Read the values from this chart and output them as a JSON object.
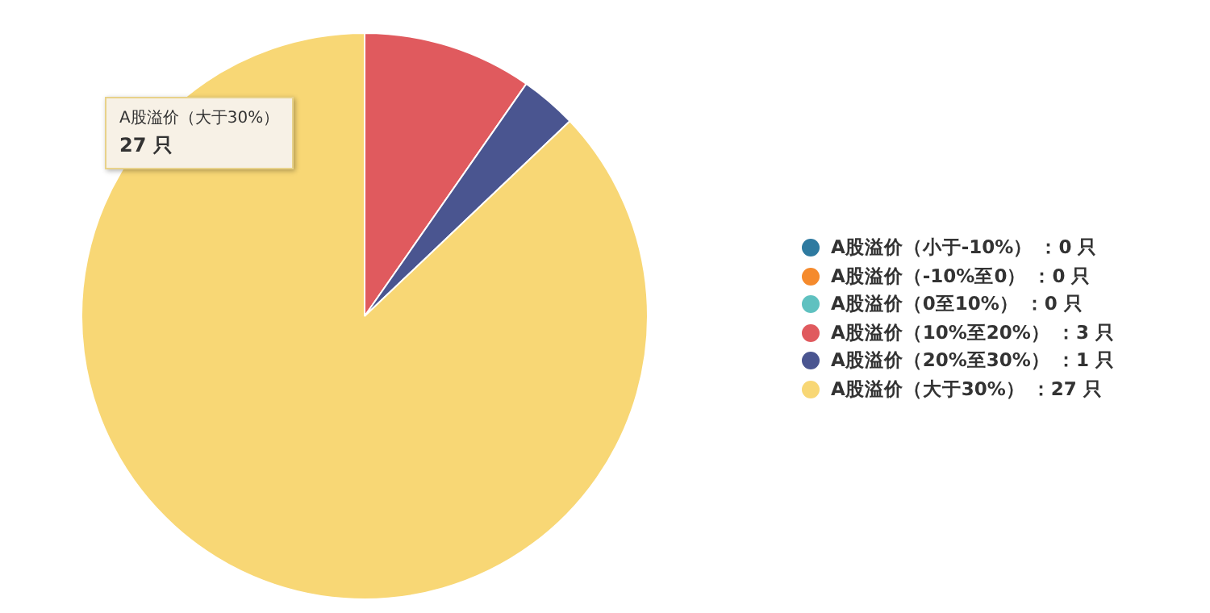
{
  "chart_data": {
    "type": "pie",
    "categories": [
      "A股溢价（小于-10%）",
      "A股溢价（-10%至0）",
      "A股溢价（0至10%）",
      "A股溢价（10%至20%）",
      "A股溢价（20%至30%）",
      "A股溢价（大于30%）"
    ],
    "values": [
      0,
      0,
      0,
      3,
      1,
      27
    ],
    "colors": [
      "#2e7aa0",
      "#f58a2c",
      "#5fc1c0",
      "#e05a5e",
      "#4a5590",
      "#f8d775"
    ],
    "value_labels": [
      "：0 只",
      "：0 只",
      "：0 只",
      "：3 只",
      "：1 只",
      "：27 只"
    ],
    "legend": "right",
    "annotations": [
      "A股溢价（大于30%）",
      "27 只"
    ]
  }
}
